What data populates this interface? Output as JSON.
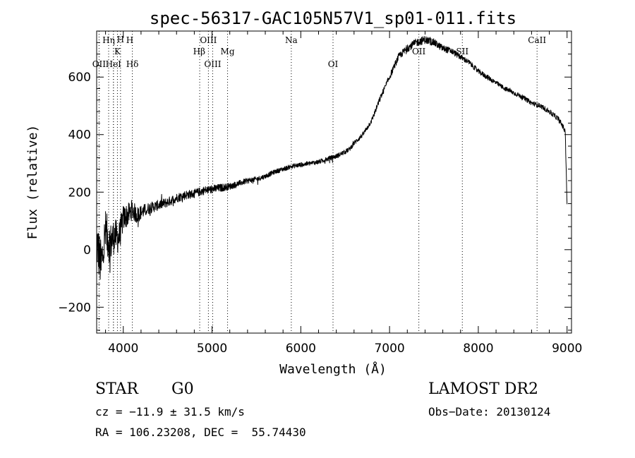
{
  "chart_data": {
    "type": "line",
    "title": "spec-56317-GAC105N57V1_sp01-011.fits",
    "xlabel": "Wavelength (Å)",
    "ylabel": "Flux (relative)",
    "xlim": [
      3700,
      9050
    ],
    "ylim": [
      -290,
      760
    ],
    "x_ticks": [
      4000,
      5000,
      6000,
      7000,
      8000,
      9000
    ],
    "y_ticks": [
      -200,
      0,
      200,
      400,
      600
    ],
    "x_tick_labels": [
      "4000",
      "5000",
      "6000",
      "7000",
      "8000",
      "9000"
    ],
    "y_tick_labels": [
      "−200",
      "0",
      "200",
      "400",
      "600"
    ],
    "grid": false,
    "series": [
      {
        "x": [
          3700,
          3750,
          3800,
          3850,
          3900,
          3950,
          4000,
          4050,
          4100,
          4150,
          4200,
          4300,
          4400,
          4500,
          4600,
          4700,
          4800,
          4900,
          5000,
          5100,
          5200,
          5300,
          5400,
          5500,
          5600,
          5700,
          5800,
          5900,
          6000,
          6100,
          6200,
          6300,
          6400,
          6500,
          6550,
          6600,
          6700,
          6800,
          6900,
          7000,
          7100,
          7200,
          7300,
          7400,
          7500,
          7600,
          7700,
          7800,
          7900,
          8000,
          8100,
          8200,
          8300,
          8400,
          8500,
          8600,
          8700,
          8800,
          8900,
          8950,
          8980,
          9000
        ],
        "y": [
          30,
          -60,
          60,
          20,
          50,
          40,
          110,
          120,
          140,
          120,
          130,
          145,
          155,
          165,
          180,
          190,
          195,
          205,
          210,
          215,
          220,
          230,
          240,
          245,
          255,
          270,
          280,
          290,
          295,
          300,
          305,
          315,
          325,
          340,
          350,
          370,
          400,
          450,
          530,
          600,
          670,
          700,
          720,
          730,
          720,
          700,
          690,
          670,
          650,
          620,
          600,
          580,
          560,
          545,
          530,
          510,
          500,
          480,
          455,
          430,
          410,
          150
        ],
        "noise": [
          90,
          90,
          80,
          70,
          60,
          55,
          45,
          40,
          35,
          30,
          25,
          20,
          18,
          17,
          16,
          16,
          15,
          15,
          15,
          14,
          12,
          10,
          10,
          9,
          8,
          8,
          8,
          8,
          8,
          8,
          8,
          8,
          8,
          8,
          8,
          8,
          8,
          9,
          10,
          11,
          12,
          13,
          14,
          14,
          13,
          12,
          11,
          10,
          9,
          9,
          9,
          8,
          8,
          8,
          8,
          8,
          8,
          9,
          9,
          9,
          9,
          9
        ],
        "step": 2.5
      }
    ],
    "lines": [
      {
        "label": "OII",
        "x": 3727,
        "row": 3,
        "anchor": "middle",
        "dx": 0
      },
      {
        "label": "Hη",
        "x": 3835,
        "row": 1,
        "anchor": "middle",
        "dx": 0
      },
      {
        "label": "H",
        "x": 3889,
        "row": 1,
        "anchor": "start",
        "dx": 18
      },
      {
        "label": "HeI",
        "x": 3889,
        "row": 3,
        "anchor": "middle",
        "dx": 0
      },
      {
        "label": "K",
        "x": 3934,
        "row": 2,
        "anchor": "middle",
        "dx": 0
      },
      {
        "label": "H",
        "x": 3969,
        "row": 0,
        "anchor": "middle",
        "dx": 0
      },
      {
        "label": "Hδ",
        "x": 4102,
        "row": 3,
        "anchor": "middle",
        "dx": 0
      },
      {
        "label": "Hβ",
        "x": 4861,
        "row": 2,
        "anchor": "end",
        "dx": 8
      },
      {
        "label": "OIII",
        "x": 4959,
        "row": 1,
        "anchor": "middle",
        "dx": 0
      },
      {
        "label": "OIII",
        "x": 5007,
        "row": 3,
        "anchor": "middle",
        "dx": 0
      },
      {
        "label": "Mg",
        "x": 5175,
        "row": 2,
        "anchor": "middle",
        "dx": 0
      },
      {
        "label": "Na",
        "x": 5893,
        "row": 1,
        "anchor": "middle",
        "dx": 0
      },
      {
        "label": "OI",
        "x": 6363,
        "row": 3,
        "anchor": "middle",
        "dx": 0
      },
      {
        "label": "OII",
        "x": 7330,
        "row": 2,
        "anchor": "middle",
        "dx": 0
      },
      {
        "label": "SII",
        "x": 7820,
        "row": 2,
        "anchor": "middle",
        "dx": 0
      },
      {
        "label": "CaII",
        "x": 8662,
        "row": 1,
        "anchor": "middle",
        "dx": 0
      }
    ]
  },
  "info": {
    "object_type": "STAR",
    "subclass": "G0",
    "survey": "LAMOST DR2",
    "velocity": "cz = −11.9 ± 31.5 km/s",
    "obs_date": "Obs−Date: 20130124",
    "coordinates": "RA = 106.23208, DEC =  55.74430"
  }
}
